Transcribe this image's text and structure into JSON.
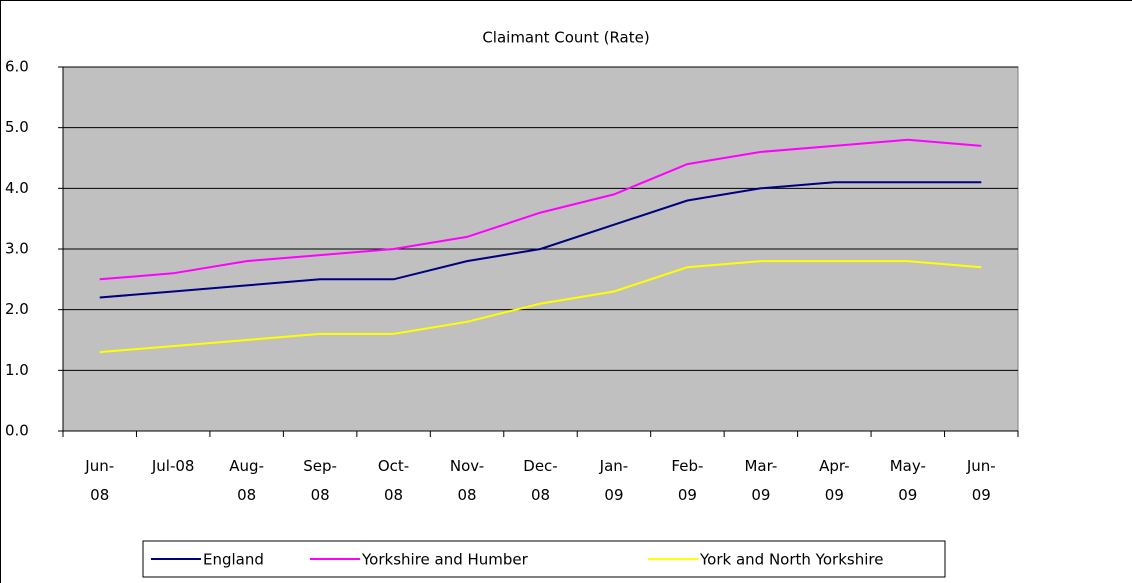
{
  "chart_data": {
    "type": "line",
    "title": "Claimant Count (Rate)",
    "categories": [
      "Jun-08",
      "Jul-08",
      "Aug-08",
      "Sep-08",
      "Oct-08",
      "Nov-08",
      "Dec-08",
      "Jan-09",
      "Feb-09",
      "Mar-09",
      "Apr-09",
      "May-09",
      "Jun-09"
    ],
    "series": [
      {
        "name": "England",
        "color": "#000080",
        "values": [
          2.2,
          2.3,
          2.4,
          2.5,
          2.5,
          2.8,
          3.0,
          3.4,
          3.8,
          4.0,
          4.1,
          4.1,
          4.1
        ]
      },
      {
        "name": "Yorkshire and Humber",
        "color": "#ff00ff",
        "values": [
          2.5,
          2.6,
          2.8,
          2.9,
          3.0,
          3.2,
          3.6,
          3.9,
          4.4,
          4.6,
          4.7,
          4.8,
          4.7
        ]
      },
      {
        "name": "York and North Yorkshire",
        "color": "#ffff00",
        "values": [
          1.3,
          1.4,
          1.5,
          1.6,
          1.6,
          1.8,
          2.1,
          2.3,
          2.7,
          2.8,
          2.8,
          2.8,
          2.7
        ]
      }
    ],
    "ylim": [
      0,
      6
    ],
    "yticks": [
      {
        "value": 0,
        "label": "0.0"
      },
      {
        "value": 1,
        "label": "1.0"
      },
      {
        "value": 2,
        "label": "2.0"
      },
      {
        "value": 3,
        "label": "3.0"
      },
      {
        "value": 4,
        "label": "4.0"
      },
      {
        "value": 5,
        "label": "5.0"
      },
      {
        "value": 6,
        "label": "6.0"
      }
    ],
    "grid": true,
    "plot_background": "#c0c0c0",
    "legend": "bottom"
  }
}
